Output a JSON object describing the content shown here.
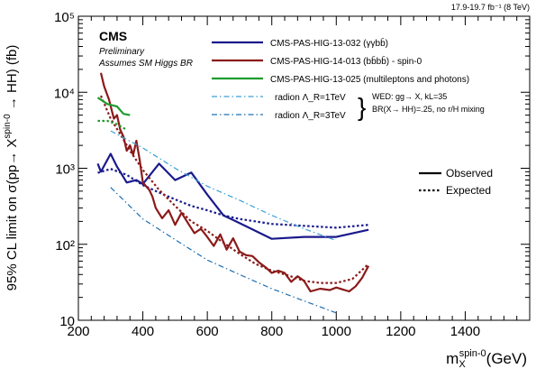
{
  "header": {
    "lumi_label": "17.9-19.7 fb⁻¹ (8 TeV)"
  },
  "experiment": {
    "name": "CMS",
    "status": "Preliminary",
    "note": "Assumes SM Higgs BR"
  },
  "legend_top": {
    "entries": [
      {
        "label": "CMS-PAS-HIG-13-032 (γγbb̄)",
        "color": "#1a1a8c"
      },
      {
        "label": "CMS-PAS-HIG-14-013 (bb̄bb̄) - spin-0",
        "color": "#8b1a1a"
      },
      {
        "label": "CMS-PAS-HIG-13-025 (multileptons and photons)",
        "color": "#1f9b2f"
      },
      {
        "label": "radion Λ_R=1TeV",
        "color": "#3a9fd8"
      },
      {
        "label": "radion Λ_R=3TeV",
        "color": "#1f6fb0"
      }
    ],
    "wed_line1": "WED: gg→ X, kL=35",
    "wed_line2": "BR(X→ HH)=.25, no r/H mixing"
  },
  "legend_style": {
    "observed": "Observed",
    "expected": "Expected"
  },
  "chart_data": {
    "type": "line",
    "title": "",
    "xlabel": "m_X^{spin-0} (GeV)",
    "ylabel": "95% CL limit on σ(pp→ X^{spin-0} → HH) (fb)",
    "xlim": [
      200,
      1600
    ],
    "ylim": [
      10,
      100000
    ],
    "yscale": "log",
    "x_ticks": [
      200,
      400,
      600,
      800,
      1000,
      1200,
      1400
    ],
    "y_ticks": [
      10,
      100,
      1000,
      10000,
      100000
    ],
    "y_tick_labels": [
      "10",
      "10²",
      "10³",
      "10⁴",
      "10⁵"
    ],
    "series": [
      {
        "name": "CMS-PAS-HIG-13-032 (γγbb̄) observed",
        "color": "#1a1a8c",
        "style": "solid",
        "x": [
          260,
          270,
          300,
          320,
          350,
          380,
          400,
          450,
          500,
          550,
          600,
          650,
          700,
          800,
          900,
          1000,
          1100
        ],
        "y": [
          1150,
          900,
          1550,
          1050,
          650,
          700,
          620,
          1150,
          700,
          880,
          450,
          240,
          190,
          118,
          125,
          125,
          155
        ]
      },
      {
        "name": "CMS-PAS-HIG-13-032 (γγbb̄) expected",
        "color": "#1a1a8c",
        "style": "dotted",
        "x": [
          260,
          300,
          350,
          400,
          450,
          500,
          550,
          600,
          650,
          700,
          800,
          900,
          1000,
          1100
        ],
        "y": [
          870,
          980,
          820,
          600,
          480,
          390,
          320,
          280,
          240,
          215,
          185,
          175,
          165,
          180
        ]
      },
      {
        "name": "CMS-PAS-HIG-14-013 (bb̄bb̄) - spin-0 observed",
        "color": "#8b1a1a",
        "style": "solid",
        "x": [
          270,
          280,
          295,
          310,
          320,
          330,
          340,
          350,
          360,
          370,
          380,
          390,
          400,
          410,
          420,
          430,
          440,
          460,
          480,
          500,
          520,
          540,
          560,
          580,
          600,
          620,
          640,
          660,
          680,
          700,
          720,
          740,
          760,
          780,
          800,
          820,
          840,
          860,
          880,
          900,
          920,
          950,
          980,
          1000,
          1040,
          1060,
          1080,
          1100
        ],
        "y": [
          18000,
          12000,
          8000,
          4500,
          5000,
          3200,
          2600,
          1700,
          2000,
          1500,
          2300,
          1300,
          650,
          580,
          520,
          420,
          300,
          220,
          280,
          180,
          260,
          190,
          140,
          160,
          125,
          95,
          135,
          85,
          120,
          80,
          72,
          70,
          58,
          50,
          42,
          45,
          42,
          32,
          38,
          33,
          24,
          26,
          25,
          27,
          24,
          28,
          36,
          52
        ]
      },
      {
        "name": "CMS-PAS-HIG-14-013 (bb̄bb̄) - spin-0 expected",
        "color": "#8b1a1a",
        "style": "dotted",
        "x": [
          270,
          300,
          330,
          360,
          400,
          450,
          500,
          550,
          600,
          650,
          700,
          750,
          800,
          850,
          900,
          950,
          1000,
          1050,
          1100
        ],
        "y": [
          9000,
          4500,
          2800,
          1700,
          950,
          520,
          320,
          200,
          150,
          105,
          75,
          55,
          45,
          39,
          33,
          31,
          31,
          35,
          55
        ]
      },
      {
        "name": "CMS-PAS-HIG-13-025 (multileptons and photons) observed",
        "color": "#1f9b2f",
        "style": "solid",
        "x": [
          260,
          290,
          320,
          340,
          360
        ],
        "y": [
          8500,
          7000,
          6500,
          5200,
          5000
        ]
      },
      {
        "name": "CMS-PAS-HIG-13-025 (multileptons and photons) expected",
        "color": "#1f9b2f",
        "style": "dotted",
        "x": [
          260,
          290,
          320,
          350
        ],
        "y": [
          4200,
          4200,
          3800,
          3200
        ]
      },
      {
        "name": "radion Λ_R=1TeV",
        "color": "#3a9fd8",
        "style": "dashdot",
        "x": [
          300,
          400,
          500,
          600,
          700,
          800,
          900,
          1000
        ],
        "y": [
          3100,
          1850,
          1000,
          580,
          380,
          240,
          160,
          112
        ]
      },
      {
        "name": "radion Λ_R=3TeV",
        "color": "#1f6fb0",
        "style": "dashdot",
        "x": [
          300,
          400,
          500,
          600,
          700,
          800,
          900,
          1000
        ],
        "y": [
          560,
          215,
          115,
          62,
          40,
          26,
          18,
          12.5
        ]
      }
    ]
  }
}
